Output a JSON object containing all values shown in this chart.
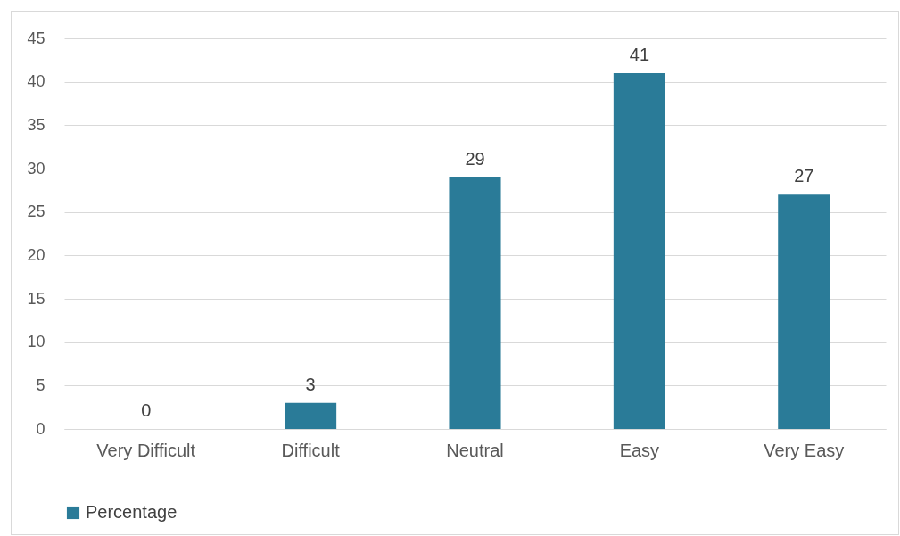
{
  "chart_data": {
    "type": "bar",
    "categories": [
      "Very Difficult",
      "Difficult",
      "Neutral",
      "Easy",
      "Very Easy"
    ],
    "series": [
      {
        "name": "Percentage",
        "color": "#2a7b98",
        "values": [
          0,
          3,
          29,
          41,
          27
        ]
      }
    ],
    "ylim": [
      0,
      45
    ],
    "yticks": [
      0,
      5,
      10,
      15,
      20,
      25,
      30,
      35,
      40,
      45
    ],
    "grid": "y",
    "legend": "bottom",
    "data_labels": true
  }
}
